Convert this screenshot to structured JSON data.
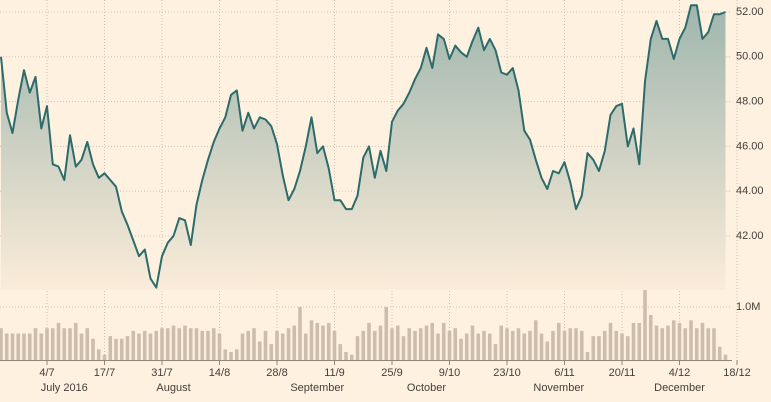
{
  "chart_data": [
    {
      "type": "area",
      "categories": [
        null,
        null,
        null,
        null,
        null,
        null,
        null,
        null,
        "4/7",
        null,
        null,
        null,
        null,
        null,
        null,
        null,
        null,
        null,
        "17/7",
        null,
        null,
        null,
        null,
        null,
        null,
        null,
        null,
        null,
        "31/7",
        null,
        null,
        null,
        null,
        null,
        null,
        null,
        null,
        null,
        "14/8",
        null,
        null,
        null,
        null,
        null,
        null,
        null,
        null,
        null,
        "28/8",
        null,
        null,
        null,
        null,
        null,
        null,
        null,
        null,
        null,
        "11/9",
        null,
        null,
        null,
        null,
        null,
        null,
        null,
        null,
        null,
        "25/9",
        null,
        null,
        null,
        null,
        null,
        null,
        null,
        null,
        null,
        "9/10",
        null,
        null,
        null,
        null,
        null,
        null,
        null,
        null,
        null,
        "23/10",
        null,
        null,
        null,
        null,
        null,
        null,
        null,
        null,
        null,
        "6/11",
        null,
        null,
        null,
        null,
        null,
        null,
        null,
        null,
        null,
        "20/11",
        null,
        null,
        null,
        null,
        null,
        null,
        null,
        null,
        null,
        "4/12",
        null,
        null,
        null,
        null,
        null,
        null,
        null,
        null,
        null,
        "18/12"
      ],
      "categories2": [
        null,
        null,
        null,
        null,
        null,
        null,
        null,
        null,
        null,
        null,
        null,
        "July 2016",
        null,
        null,
        null,
        null,
        null,
        null,
        null,
        null,
        null,
        null,
        null,
        null,
        null,
        null,
        null,
        null,
        null,
        null,
        "August",
        null,
        null,
        null,
        null,
        null,
        null,
        null,
        null,
        null,
        null,
        null,
        null,
        null,
        null,
        null,
        null,
        null,
        null,
        null,
        null,
        null,
        null,
        null,
        null,
        "September",
        null,
        null,
        null,
        null,
        null,
        null,
        null,
        null,
        null,
        null,
        null,
        null,
        null,
        null,
        null,
        null,
        null,
        null,
        "October",
        null,
        null,
        null,
        null,
        null,
        null,
        null,
        null,
        null,
        null,
        null,
        null,
        null,
        null,
        null,
        null,
        null,
        null,
        null,
        null,
        null,
        null,
        "November",
        null,
        null,
        null,
        null,
        null,
        null,
        null,
        null,
        null,
        null,
        null,
        null,
        null,
        null,
        null,
        null,
        null,
        null,
        null,
        null,
        "December",
        null,
        null,
        null,
        null,
        null,
        null,
        null,
        null,
        null
      ],
      "values": [
        50.0,
        47.5,
        46.6,
        48.1,
        49.4,
        48.4,
        49.1,
        46.8,
        47.8,
        45.2,
        45.1,
        44.5,
        46.5,
        45.1,
        45.4,
        46.2,
        45.2,
        44.6,
        44.8,
        44.5,
        44.2,
        43.1,
        42.5,
        41.8,
        41.1,
        41.4,
        40.1,
        39.7,
        41.1,
        41.7,
        42.0,
        42.8,
        42.7,
        41.6,
        43.4,
        44.5,
        45.4,
        46.2,
        46.8,
        47.3,
        48.3,
        48.5,
        46.7,
        47.5,
        46.8,
        47.3,
        47.2,
        46.9,
        46.1,
        44.7,
        43.6,
        44.1,
        44.9,
        46.0,
        47.3,
        45.7,
        46.0,
        45.0,
        43.6,
        43.6,
        43.2,
        43.2,
        43.8,
        45.5,
        46.0,
        44.6,
        45.8,
        44.9,
        47.1,
        47.6,
        47.9,
        48.4,
        49.0,
        49.5,
        50.4,
        49.5,
        51.0,
        50.8,
        49.9,
        50.5,
        50.2,
        50.0,
        50.7,
        51.3,
        50.3,
        50.8,
        50.3,
        49.3,
        49.2,
        49.5,
        48.5,
        46.7,
        46.3,
        45.4,
        44.6,
        44.1,
        44.9,
        44.8,
        45.3,
        44.4,
        43.2,
        43.8,
        45.7,
        45.4,
        44.9,
        45.8,
        47.4,
        47.8,
        47.9,
        46.0,
        46.8,
        45.2,
        48.9,
        50.8,
        51.6,
        50.8,
        50.8,
        49.9,
        50.8,
        51.3,
        52.3,
        52.3,
        50.8,
        51.1,
        51.9,
        51.9,
        52.0,
        null,
        null
      ],
      "color": "#2c6b6c",
      "ylim": [
        39.6,
        52.4
      ],
      "yticks": [
        {
          "value": 42,
          "label": "42.00"
        },
        {
          "value": 44,
          "label": "44.00"
        },
        {
          "value": 46,
          "label": "46.00"
        },
        {
          "value": 48,
          "label": "48.00"
        },
        {
          "value": 50,
          "label": "50.00"
        },
        {
          "value": 52,
          "label": "52.00"
        }
      ],
      "grid": true
    },
    {
      "type": "bar",
      "values": [
        0.6,
        0.5,
        0.5,
        0.5,
        0.5,
        0.5,
        0.6,
        0.5,
        0.6,
        0.6,
        0.7,
        0.6,
        0.6,
        0.7,
        0.5,
        0.6,
        0.4,
        0.2,
        0.1,
        0.45,
        0.4,
        0.4,
        0.45,
        0.55,
        0.5,
        0.55,
        0.5,
        0.55,
        0.6,
        0.6,
        0.65,
        0.6,
        0.65,
        0.6,
        0.6,
        0.55,
        0.55,
        0.6,
        0.5,
        0.2,
        0.15,
        0.2,
        0.5,
        0.55,
        0.6,
        0.35,
        0.55,
        0.3,
        0.55,
        0.5,
        0.6,
        0.65,
        1.0,
        0.5,
        0.75,
        0.7,
        0.65,
        0.7,
        0.55,
        0.3,
        0.15,
        0.1,
        0.45,
        0.55,
        0.7,
        0.55,
        0.65,
        1.0,
        0.6,
        0.65,
        0.45,
        0.6,
        0.55,
        0.6,
        0.65,
        0.7,
        0.5,
        0.7,
        0.55,
        0.6,
        0.4,
        0.5,
        0.65,
        0.5,
        0.55,
        0.5,
        0.3,
        0.65,
        0.6,
        0.55,
        0.6,
        0.5,
        0.55,
        0.75,
        0.5,
        0.35,
        0.55,
        0.7,
        0.55,
        0.6,
        0.6,
        0.55,
        0.15,
        0.45,
        0.45,
        0.55,
        0.7,
        0.55,
        0.5,
        0.45,
        0.7,
        0.7,
        1.32,
        0.85,
        0.65,
        0.6,
        0.65,
        0.75,
        0.7,
        0.6,
        0.75,
        0.6,
        0.7,
        0.6,
        0.6,
        0.25,
        0.1,
        null,
        null
      ],
      "color": "#cdbdac",
      "ylim": [
        0,
        1.4
      ],
      "yticks": [
        {
          "value": 1.0,
          "label": "1.0M"
        }
      ],
      "grid": true
    }
  ]
}
